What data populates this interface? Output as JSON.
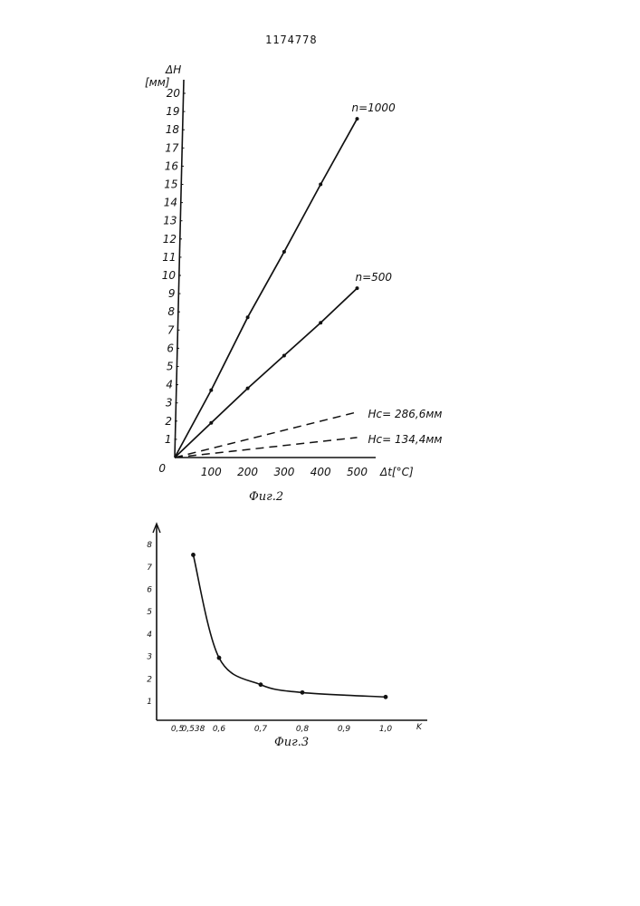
{
  "document": {
    "page_number": "1174778"
  },
  "chart_data": [
    {
      "type": "line",
      "caption": "Фиг.2",
      "ylabel": "ΔH",
      "yunit": "[мм]",
      "xlabel": "Δt[°C]",
      "origin_label": "0",
      "xlim": [
        0,
        520
      ],
      "ylim": [
        0,
        20
      ],
      "x_ticks": [
        "100",
        "200",
        "300",
        "400",
        "500"
      ],
      "y_ticks": [
        "1",
        "2",
        "3",
        "4",
        "5",
        "6",
        "7",
        "8",
        "9",
        "10",
        "11",
        "12",
        "13",
        "14",
        "15",
        "16",
        "17",
        "18",
        "19",
        "20"
      ],
      "series": [
        {
          "name": "n=1000",
          "style": "solid",
          "markers": true,
          "points": [
            [
              0,
              0
            ],
            [
              100,
              3.7
            ],
            [
              200,
              7.7
            ],
            [
              300,
              11.3
            ],
            [
              400,
              15.0
            ],
            [
              500,
              18.6
            ]
          ]
        },
        {
          "name": "n=500",
          "style": "solid",
          "markers": true,
          "points": [
            [
              0,
              0
            ],
            [
              100,
              1.9
            ],
            [
              200,
              3.8
            ],
            [
              300,
              5.6
            ],
            [
              400,
              7.4
            ],
            [
              500,
              9.3
            ]
          ]
        },
        {
          "name": "Hc= 286,6мм",
          "style": "dashed",
          "markers": false,
          "points": [
            [
              0,
              0
            ],
            [
              500,
              2.5
            ]
          ]
        },
        {
          "name": "Hc= 134,4мм",
          "style": "dashed",
          "markers": false,
          "points": [
            [
              0,
              0
            ],
            [
              500,
              1.1
            ]
          ]
        }
      ]
    },
    {
      "type": "line",
      "caption": "Фиг.3",
      "xlabel": "K",
      "xlim": [
        0.45,
        1.03
      ],
      "ylim": [
        0,
        8.2
      ],
      "x_ticks": [
        "0,5",
        "0,538",
        "0,6",
        "0,7",
        "0,8",
        "0,9",
        "1,0"
      ],
      "x_tick_values": [
        0.5,
        0.538,
        0.6,
        0.7,
        0.8,
        0.9,
        1.0
      ],
      "y_ticks": [
        "1",
        "2",
        "3",
        "4",
        "5",
        "6",
        "7",
        "8"
      ],
      "series": [
        {
          "style": "solid",
          "smooth": true,
          "markers": true,
          "points": [
            [
              0.538,
              7.5
            ],
            [
              0.6,
              2.9
            ],
            [
              0.7,
              1.7
            ],
            [
              0.8,
              1.35
            ],
            [
              1.0,
              1.15
            ]
          ]
        }
      ]
    }
  ]
}
